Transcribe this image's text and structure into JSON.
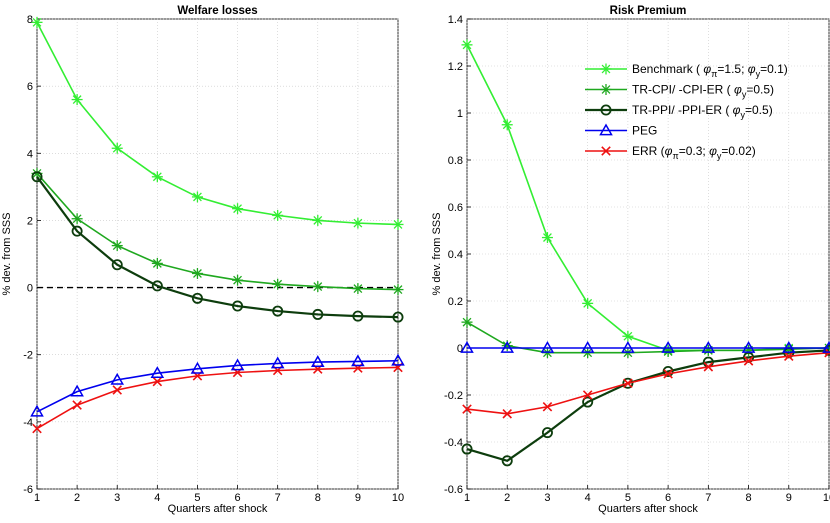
{
  "chart_data": [
    {
      "type": "line",
      "title": "Welfare losses",
      "xlabel": "Quarters after shock",
      "ylabel": "% dev. from SSS",
      "x": [
        1,
        2,
        3,
        4,
        5,
        6,
        7,
        8,
        9,
        10
      ],
      "xlim": [
        1,
        10
      ],
      "ylim": [
        -6,
        8
      ],
      "xticks": [
        "1",
        "2",
        "3",
        "4",
        "5",
        "6",
        "7",
        "8",
        "9",
        "10"
      ],
      "yticks": [
        "-6",
        "-4",
        "-2",
        "0",
        "2",
        "4",
        "6",
        "8"
      ],
      "grid": true,
      "zero_line": "dashed",
      "series": [
        {
          "key": "benchmark",
          "values": [
            7.9,
            5.6,
            4.15,
            3.3,
            2.7,
            2.35,
            2.15,
            2.0,
            1.92,
            1.88
          ]
        },
        {
          "key": "trcpi",
          "values": [
            3.4,
            2.05,
            1.25,
            0.72,
            0.42,
            0.22,
            0.1,
            0.03,
            -0.03,
            -0.06
          ]
        },
        {
          "key": "trppi",
          "values": [
            3.3,
            1.68,
            0.68,
            0.05,
            -0.32,
            -0.55,
            -0.7,
            -0.8,
            -0.85,
            -0.88
          ]
        },
        {
          "key": "peg",
          "values": [
            -3.7,
            -3.1,
            -2.75,
            -2.55,
            -2.42,
            -2.32,
            -2.26,
            -2.22,
            -2.2,
            -2.18
          ]
        },
        {
          "key": "err",
          "values": [
            -4.2,
            -3.5,
            -3.05,
            -2.8,
            -2.63,
            -2.53,
            -2.47,
            -2.43,
            -2.4,
            -2.38
          ]
        }
      ]
    },
    {
      "type": "line",
      "title": "Risk Premium",
      "xlabel": "Quarters after shock",
      "ylabel": "% dev. from SSS",
      "x": [
        1,
        2,
        3,
        4,
        5,
        6,
        7,
        8,
        9,
        10
      ],
      "xlim": [
        1,
        10
      ],
      "ylim": [
        -0.6,
        1.4
      ],
      "xticks": [
        "1",
        "2",
        "3",
        "4",
        "5",
        "6",
        "7",
        "8",
        "9",
        "10"
      ],
      "yticks": [
        "-0.6",
        "-0.4",
        "-0.2",
        "0",
        "0.2",
        "0.4",
        "0.6",
        "0.8",
        "1",
        "1.2",
        "1.4"
      ],
      "grid": true,
      "legend": "top-right",
      "series": [
        {
          "key": "benchmark",
          "values": [
            1.29,
            0.95,
            0.47,
            0.19,
            0.05,
            -0.01,
            -0.01,
            -0.01,
            0.0,
            0.0
          ]
        },
        {
          "key": "trcpi",
          "values": [
            0.11,
            0.01,
            -0.02,
            -0.02,
            -0.02,
            -0.015,
            -0.01,
            -0.01,
            -0.005,
            0.0
          ]
        },
        {
          "key": "trppi",
          "values": [
            -0.43,
            -0.48,
            -0.36,
            -0.23,
            -0.15,
            -0.1,
            -0.06,
            -0.04,
            -0.02,
            -0.01
          ]
        },
        {
          "key": "peg",
          "values": [
            0.0,
            0.0,
            0.0,
            0.0,
            0.0,
            0.0,
            0.0,
            0.0,
            0.0,
            0.0
          ]
        },
        {
          "key": "err",
          "values": [
            -0.26,
            -0.28,
            -0.25,
            -0.2,
            -0.15,
            -0.11,
            -0.08,
            -0.055,
            -0.035,
            -0.02
          ]
        }
      ]
    }
  ],
  "legend": {
    "entries": [
      {
        "key": "benchmark",
        "color": "#33ee33",
        "marker": "star",
        "parts": [
          "Benchmark ( ",
          "φ",
          "π",
          "=1.5; ",
          "φ",
          "y",
          "=0.1)"
        ]
      },
      {
        "key": "trcpi",
        "color": "#1fa81f",
        "marker": "star",
        "parts": [
          "TR-CPI/ -CPI-ER ( ",
          "φ",
          "y",
          "=0.5)"
        ]
      },
      {
        "key": "trppi",
        "color": "#0d3d0d",
        "marker": "circle",
        "parts": [
          "TR-PPI/ -PPI-ER ( ",
          "φ",
          "y",
          "=0.5)"
        ]
      },
      {
        "key": "peg",
        "color": "#0000ee",
        "marker": "triangle",
        "parts": [
          "PEG"
        ]
      },
      {
        "key": "err",
        "color": "#ee1111",
        "marker": "x",
        "parts": [
          "ERR (",
          "φ",
          "π",
          "=0.3; ",
          "φ",
          "y",
          "=0.02)"
        ]
      }
    ]
  }
}
